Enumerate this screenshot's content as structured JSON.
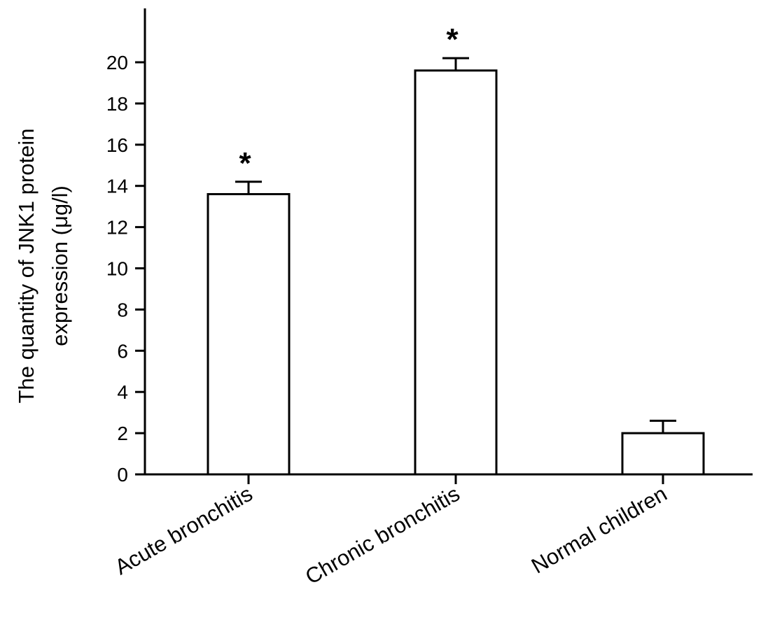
{
  "chart_data": {
    "type": "bar",
    "title": "",
    "xlabel": "",
    "ylabel_lines": [
      "The quantity of JNK1 protein",
      "expression (μg/l)"
    ],
    "categories": [
      "Acute bronchitis",
      "Chronic bronchitis",
      "Normal children"
    ],
    "values": [
      13.6,
      19.6,
      2.0
    ],
    "errors": [
      0.6,
      0.6,
      0.6
    ],
    "significance": [
      "*",
      "*",
      ""
    ],
    "ylim": [
      0,
      20
    ],
    "yticks": [
      0,
      2,
      4,
      6,
      8,
      10,
      12,
      14,
      16,
      18,
      20
    ],
    "grid": false,
    "legend": "none"
  }
}
